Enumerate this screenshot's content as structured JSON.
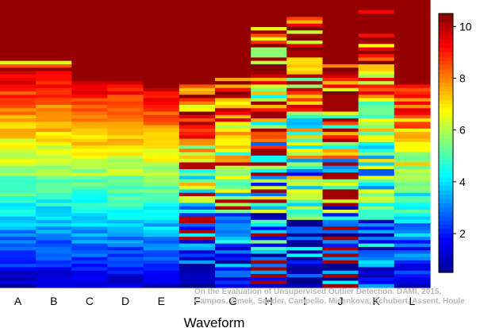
{
  "chart_data": {
    "type": "heatmap",
    "xlabel": "Waveform",
    "categories": [
      "A",
      "B",
      "C",
      "D",
      "E",
      "F",
      "G",
      "H",
      "I",
      "J",
      "K",
      "L"
    ],
    "rows": 85,
    "colorbar": {
      "ticks": [
        2,
        4,
        6,
        8,
        10
      ],
      "min": 0.5,
      "max": 10.5
    },
    "colormap": [
      "#00008f",
      "#0000ff",
      "#0080ff",
      "#00ffff",
      "#80ff80",
      "#ffff00",
      "#ff8000",
      "#ff0000",
      "#800000"
    ],
    "annotation": {
      "line1": "On the Evaluation of Unsupervised Outlier Detection. DAMI, 2015.",
      "line2": "Campos, Zimek, Sander, Campello, Micenkova, Schubert, Assent, Houle"
    }
  }
}
